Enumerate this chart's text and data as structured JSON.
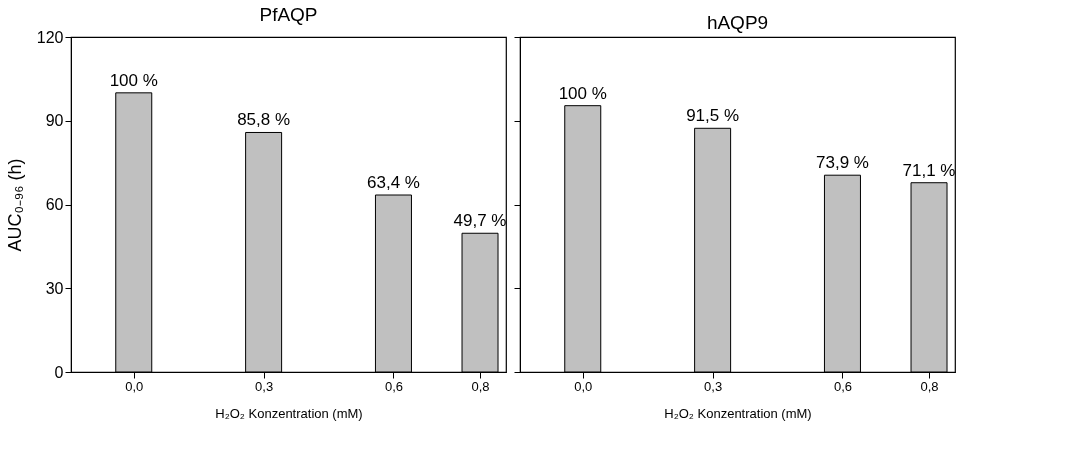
{
  "chart_data": [
    {
      "type": "bar",
      "title": "PfAQP",
      "xlabel": "H₂O₂ Konzentration (mM)",
      "ylabel": "AUC₀₋₉₆ (h)",
      "x": [
        0.0,
        0.3,
        0.6,
        0.8
      ],
      "values": [
        100,
        85.8,
        63.4,
        49.7
      ],
      "color": "#c0c0c0",
      "xlim": [
        -0.145,
        0.86
      ],
      "xticks": [
        {
          "value": 0,
          "label": "0,0"
        },
        {
          "value": 0.3,
          "label": "0,3"
        },
        {
          "value": 0.6,
          "label": "0,6"
        },
        {
          "value": 0.8,
          "label": "0,8"
        }
      ],
      "ylim": [
        0,
        120
      ],
      "yticks": [
        0,
        30,
        60,
        90,
        120
      ],
      "grid": false,
      "annotations": [
        {
          "text": "100 %",
          "x": 0.0,
          "y": 100
        },
        {
          "text": "85,8 %",
          "x": 0.3,
          "y": 85.8
        },
        {
          "text": "63,4 %",
          "x": 0.6,
          "y": 63.4
        },
        {
          "text": "49,7 %",
          "x": 0.8,
          "y": 49.7
        }
      ]
    },
    {
      "type": "bar",
      "title": "hAQP9",
      "xlabel": "H₂O₂ Konzentration (mM)",
      "x": [
        0.0,
        0.3,
        0.6,
        0.8
      ],
      "values": [
        95.4,
        87.3,
        70.5,
        67.8
      ],
      "color": "#c0c0c0",
      "xlim": [
        -0.145,
        0.86
      ],
      "xticks": [
        {
          "value": 0,
          "label": "0,0"
        },
        {
          "value": 0.3,
          "label": "0,3"
        },
        {
          "value": 0.6,
          "label": "0,6"
        },
        {
          "value": 0.8,
          "label": "0,8"
        }
      ],
      "ylim": [
        0,
        120
      ],
      "yticks": [
        0,
        30,
        60,
        90,
        120
      ],
      "tick_labels": "x",
      "grid": false,
      "annotations": [
        {
          "text": "100 %",
          "x": 0.0,
          "y": 95.4
        },
        {
          "text": "91,5 %",
          "x": 0.3,
          "y": 87.3
        },
        {
          "text": "73,9 %",
          "x": 0.6,
          "y": 70.5
        },
        {
          "text": "71,1 %",
          "x": 0.8,
          "y": 67.8
        }
      ]
    }
  ]
}
